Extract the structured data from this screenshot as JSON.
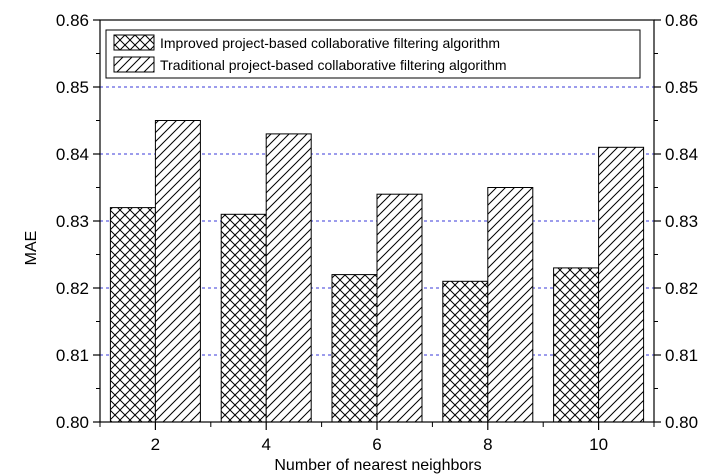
{
  "chart_data": {
    "type": "bar",
    "title": "",
    "xlabel": "Number of nearest neighbors",
    "ylabel": "MAE",
    "categories": [
      "2",
      "4",
      "6",
      "8",
      "10"
    ],
    "series": [
      {
        "name": "Improved project-based collaborative filtering algorithm",
        "values": [
          0.832,
          0.831,
          0.822,
          0.821,
          0.823
        ],
        "pattern": "crosshatch"
      },
      {
        "name": "Traditional project-based collaborative filtering algorithm",
        "values": [
          0.845,
          0.843,
          0.834,
          0.835,
          0.841
        ],
        "pattern": "diagonal"
      }
    ],
    "ylim": [
      0.8,
      0.86
    ],
    "yticks": [
      "0.80",
      "0.81",
      "0.82",
      "0.83",
      "0.84",
      "0.85",
      "0.86"
    ],
    "grid": "horizontal dashed",
    "grid_color": "#3a3ad8",
    "secondary_y_axis": true,
    "legend_position": "top-left"
  }
}
